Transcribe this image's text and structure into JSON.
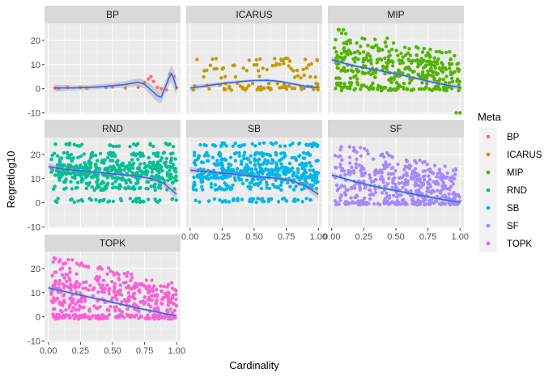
{
  "chart_data": {
    "type": "scatter",
    "layout": "faceted 3x3 (ggplot2 facet_wrap)",
    "xlabel": "Cardinality",
    "ylabel": "Regretlog10",
    "xlim": [
      -0.03,
      1.03
    ],
    "ylim": [
      -10.5,
      27
    ],
    "x_ticks": [
      0.0,
      0.25,
      0.5,
      0.75,
      1.0
    ],
    "x_tick_labels": [
      "0.00",
      "0.25",
      "0.50",
      "0.75",
      "1.00"
    ],
    "y_ticks": [
      -10,
      0,
      10,
      20
    ],
    "y_tick_labels": [
      "-10",
      "0",
      "10",
      "20"
    ],
    "grid": true,
    "smooth_color": "#3366FF",
    "legend": {
      "title": "Meta",
      "position": "right",
      "entries": [
        {
          "label": "BP",
          "color": "#F8766D"
        },
        {
          "label": "ICARUS",
          "color": "#C49A00"
        },
        {
          "label": "MIP",
          "color": "#53B400"
        },
        {
          "label": "RND",
          "color": "#00C094"
        },
        {
          "label": "SB",
          "color": "#00B6EB"
        },
        {
          "label": "SF",
          "color": "#A58AFF"
        },
        {
          "label": "TOPK",
          "color": "#FB61D7"
        }
      ]
    },
    "facets": [
      {
        "name": "BP",
        "color": "#F8766D",
        "points": [
          [
            0.05,
            0.3
          ],
          [
            0.08,
            0
          ],
          [
            0.15,
            0.5
          ],
          [
            0.25,
            0.5
          ],
          [
            0.3,
            0.2
          ],
          [
            0.45,
            0.5
          ],
          [
            0.5,
            0.8
          ],
          [
            0.6,
            0.3
          ],
          [
            0.7,
            0.6
          ],
          [
            0.75,
            2.5
          ],
          [
            0.78,
            4
          ],
          [
            0.8,
            5
          ],
          [
            0.82,
            3
          ],
          [
            0.85,
            0.5
          ],
          [
            0.88,
            0
          ],
          [
            0.92,
            -0.5
          ],
          [
            0.95,
            6
          ],
          [
            0.98,
            5
          ],
          [
            1.0,
            0.3
          ]
        ],
        "smooth": [
          [
            0.05,
            0.3
          ],
          [
            0.2,
            0.3
          ],
          [
            0.35,
            0.6
          ],
          [
            0.5,
            1.2
          ],
          [
            0.6,
            1.8
          ],
          [
            0.7,
            2.7
          ],
          [
            0.75,
            1.8
          ],
          [
            0.8,
            -0.5
          ],
          [
            0.85,
            -3
          ],
          [
            0.88,
            -3.5
          ],
          [
            0.91,
            0.5
          ],
          [
            0.94,
            4.5
          ],
          [
            0.96,
            6.2
          ],
          [
            0.98,
            3.5
          ],
          [
            1.0,
            0.3
          ]
        ],
        "band": [
          [
            0.05,
            1.8,
            -1.2
          ],
          [
            0.2,
            1.3,
            -0.7
          ],
          [
            0.35,
            1.6,
            -0.4
          ],
          [
            0.5,
            2.4,
            0
          ],
          [
            0.6,
            3.2,
            0.4
          ],
          [
            0.7,
            4.3,
            1.1
          ],
          [
            0.75,
            3.6,
            0
          ],
          [
            0.8,
            1.8,
            -2.8
          ],
          [
            0.85,
            -0.5,
            -5.5
          ],
          [
            0.88,
            -1,
            -6
          ],
          [
            0.91,
            3,
            -2
          ],
          [
            0.94,
            7.5,
            1.5
          ],
          [
            0.96,
            9.5,
            3
          ],
          [
            0.98,
            7.5,
            -0.5
          ],
          [
            1.0,
            3.5,
            -2.9
          ]
        ]
      },
      {
        "name": "ICARUS",
        "color": "#C49A00",
        "smooth": [
          [
            0.0,
            0.2
          ],
          [
            0.1,
            1.0
          ],
          [
            0.2,
            1.8
          ],
          [
            0.3,
            2.4
          ],
          [
            0.4,
            3.0
          ],
          [
            0.5,
            3.4
          ],
          [
            0.6,
            3.5
          ],
          [
            0.7,
            3.0
          ],
          [
            0.8,
            2.0
          ],
          [
            0.9,
            1.0
          ],
          [
            1.0,
            0.4
          ]
        ],
        "band": [
          [
            0.0,
            1.5,
            -1.1
          ],
          [
            0.1,
            1.9,
            0.1
          ],
          [
            0.2,
            2.6,
            1.0
          ],
          [
            0.3,
            3.1,
            1.7
          ],
          [
            0.4,
            3.6,
            2.4
          ],
          [
            0.5,
            4.0,
            2.8
          ],
          [
            0.6,
            4.1,
            2.9
          ],
          [
            0.7,
            3.6,
            2.4
          ],
          [
            0.8,
            2.6,
            1.4
          ],
          [
            0.9,
            1.7,
            0.3
          ],
          [
            1.0,
            1.4,
            -0.6
          ]
        ],
        "gen": {
          "x0": 0.02,
          "x1": 1.0,
          "levels": [
            0,
            0,
            0,
            1,
            2,
            5,
            8,
            10,
            12
          ],
          "count": 110,
          "seed": 11,
          "noise": 0.6,
          "xbias": 1.4
        }
      },
      {
        "name": "MIP",
        "color": "#53B400",
        "smooth": [
          [
            0.0,
            12
          ],
          [
            0.1,
            10.5
          ],
          [
            0.2,
            9.2
          ],
          [
            0.3,
            8.2
          ],
          [
            0.4,
            7.2
          ],
          [
            0.5,
            6.2
          ],
          [
            0.6,
            5.0
          ],
          [
            0.7,
            3.8
          ],
          [
            0.8,
            2.5
          ],
          [
            0.9,
            1.5
          ],
          [
            1.0,
            0.5
          ]
        ],
        "band": [
          [
            0.0,
            13.2,
            10.8
          ],
          [
            0.1,
            11.2,
            9.8
          ],
          [
            0.2,
            9.8,
            8.6
          ],
          [
            0.3,
            8.8,
            7.6
          ],
          [
            0.4,
            7.8,
            6.6
          ],
          [
            0.5,
            6.8,
            5.6
          ],
          [
            0.6,
            5.6,
            4.4
          ],
          [
            0.7,
            4.4,
            3.2
          ],
          [
            0.8,
            3.2,
            1.8
          ],
          [
            0.9,
            2.3,
            0.7
          ],
          [
            1.0,
            1.5,
            -0.5
          ]
        ],
        "gen": {
          "x0": 0.02,
          "x1": 1.0,
          "levels": [
            0,
            0,
            2,
            5,
            7,
            8,
            10,
            12,
            14,
            15,
            17,
            20,
            24
          ],
          "count": 420,
          "seed": 23,
          "noise": 0.9,
          "decay": true
        },
        "extra_points": [
          [
            0.97,
            -10
          ],
          [
            1.0,
            -10
          ]
        ]
      },
      {
        "name": "RND",
        "color": "#00C094",
        "smooth": [
          [
            0.0,
            15
          ],
          [
            0.1,
            14
          ],
          [
            0.2,
            13.5
          ],
          [
            0.3,
            13
          ],
          [
            0.4,
            12.5
          ],
          [
            0.5,
            12
          ],
          [
            0.6,
            11.5
          ],
          [
            0.7,
            11
          ],
          [
            0.8,
            10
          ],
          [
            0.9,
            8
          ],
          [
            1.0,
            3.5
          ]
        ],
        "band": [
          [
            0.0,
            16.5,
            13.5
          ],
          [
            0.1,
            14.8,
            13.2
          ],
          [
            0.2,
            14.2,
            12.8
          ],
          [
            0.3,
            13.7,
            12.3
          ],
          [
            0.4,
            13.2,
            11.8
          ],
          [
            0.5,
            12.7,
            11.3
          ],
          [
            0.6,
            12.2,
            10.8
          ],
          [
            0.7,
            11.8,
            10.2
          ],
          [
            0.8,
            10.9,
            9.1
          ],
          [
            0.9,
            9.2,
            6.8
          ],
          [
            1.0,
            5.5,
            1.5
          ]
        ],
        "gen": {
          "x0": 0.02,
          "x1": 1.0,
          "levels": [
            1,
            6,
            8,
            10,
            11,
            12,
            13,
            14,
            15,
            16,
            18,
            20,
            24
          ],
          "count": 520,
          "seed": 37,
          "noise": 0.8
        }
      },
      {
        "name": "SB",
        "color": "#00B6EB",
        "smooth": [
          [
            0.0,
            13.5
          ],
          [
            0.1,
            13
          ],
          [
            0.2,
            12.5
          ],
          [
            0.3,
            12
          ],
          [
            0.4,
            11.5
          ],
          [
            0.5,
            11
          ],
          [
            0.6,
            10.5
          ],
          [
            0.7,
            10
          ],
          [
            0.8,
            9
          ],
          [
            0.9,
            7
          ],
          [
            1.0,
            3.5
          ]
        ],
        "band": [
          [
            0.0,
            15,
            12
          ],
          [
            0.1,
            13.8,
            12.2
          ],
          [
            0.2,
            13.2,
            11.8
          ],
          [
            0.3,
            12.7,
            11.3
          ],
          [
            0.4,
            12.2,
            10.8
          ],
          [
            0.5,
            11.7,
            10.3
          ],
          [
            0.6,
            11.2,
            9.8
          ],
          [
            0.7,
            10.8,
            9.2
          ],
          [
            0.8,
            9.9,
            8.1
          ],
          [
            0.9,
            8.2,
            5.8
          ],
          [
            1.0,
            5.5,
            1.5
          ]
        ],
        "gen": {
          "x0": 0.02,
          "x1": 1.0,
          "levels": [
            1,
            6,
            8,
            10,
            11,
            12,
            13,
            14,
            16,
            18,
            20,
            24
          ],
          "count": 520,
          "seed": 41,
          "noise": 0.8
        }
      },
      {
        "name": "SF",
        "color": "#A58AFF",
        "smooth": [
          [
            0.0,
            11.5
          ],
          [
            0.1,
            10
          ],
          [
            0.2,
            8.5
          ],
          [
            0.3,
            7.2
          ],
          [
            0.4,
            6
          ],
          [
            0.5,
            5
          ],
          [
            0.6,
            4
          ],
          [
            0.7,
            3
          ],
          [
            0.8,
            2
          ],
          [
            0.9,
            1
          ],
          [
            1.0,
            0.2
          ]
        ],
        "band": [
          [
            0.0,
            12.7,
            10.3
          ],
          [
            0.1,
            10.7,
            9.3
          ],
          [
            0.2,
            9.1,
            7.9
          ],
          [
            0.3,
            7.8,
            6.6
          ],
          [
            0.4,
            6.6,
            5.4
          ],
          [
            0.5,
            5.6,
            4.4
          ],
          [
            0.6,
            4.6,
            3.4
          ],
          [
            0.7,
            3.6,
            2.4
          ],
          [
            0.8,
            2.7,
            1.3
          ],
          [
            0.9,
            1.8,
            0.2
          ],
          [
            1.0,
            1.2,
            -0.8
          ]
        ],
        "gen": {
          "x0": 0.02,
          "x1": 1.0,
          "levels": [
            0,
            0,
            0,
            3,
            5,
            7,
            9,
            11,
            13,
            15,
            17,
            20,
            24
          ],
          "count": 460,
          "seed": 53,
          "noise": 0.9,
          "decay": true
        }
      },
      {
        "name": "TOPK",
        "color": "#FB61D7",
        "smooth": [
          [
            0.0,
            12
          ],
          [
            0.1,
            10.8
          ],
          [
            0.2,
            9.6
          ],
          [
            0.3,
            8.4
          ],
          [
            0.4,
            7.2
          ],
          [
            0.5,
            6
          ],
          [
            0.6,
            4.8
          ],
          [
            0.7,
            3.6
          ],
          [
            0.8,
            2.5
          ],
          [
            0.9,
            1.4
          ],
          [
            1.0,
            0.4
          ]
        ],
        "band": [
          [
            0.0,
            13.2,
            10.8
          ],
          [
            0.1,
            11.5,
            10.1
          ],
          [
            0.2,
            10.2,
            9.0
          ],
          [
            0.3,
            9.0,
            7.8
          ],
          [
            0.4,
            7.8,
            6.6
          ],
          [
            0.5,
            6.6,
            5.4
          ],
          [
            0.6,
            5.4,
            4.2
          ],
          [
            0.7,
            4.2,
            3.0
          ],
          [
            0.8,
            3.2,
            1.8
          ],
          [
            0.9,
            2.2,
            0.6
          ],
          [
            1.0,
            1.4,
            -0.6
          ]
        ],
        "gen": {
          "x0": 0.02,
          "x1": 1.0,
          "levels": [
            0,
            0,
            0,
            3,
            5,
            7,
            9,
            11,
            13,
            14,
            16,
            18,
            20,
            24
          ],
          "count": 480,
          "seed": 67,
          "noise": 0.9,
          "decay": true
        }
      }
    ]
  }
}
